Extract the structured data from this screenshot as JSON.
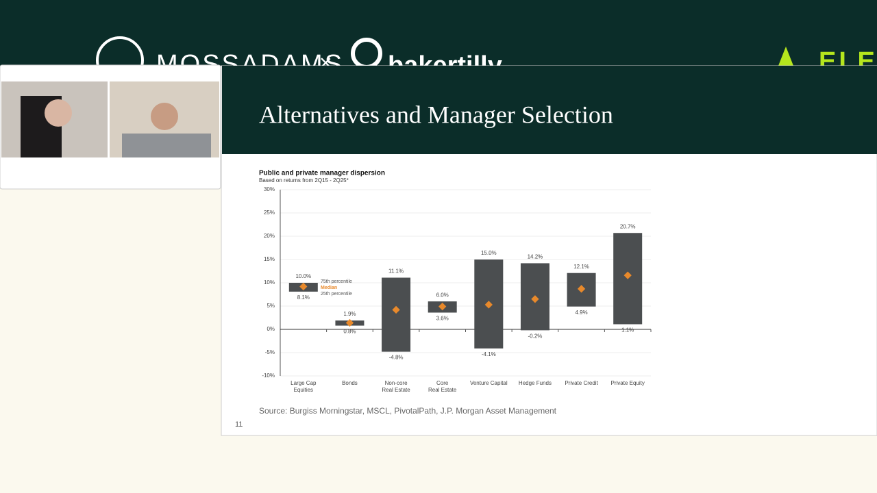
{
  "header": {
    "logos": [
      "MOSSADAMS",
      "×",
      "bakertilly",
      "ELEV"
    ]
  },
  "slide": {
    "title": "Alternatives and Manager Selection",
    "source": "Source: Burgiss Morningstar, MSCL, PivotalPath, J.P. Morgan Asset Management",
    "page_number": "11",
    "chart": {
      "type": "floating-bar",
      "title": "Public and private manager dispersion",
      "subtitle": "Based on returns from 2Q15 - 2Q25*",
      "categories": [
        [
          "Large Cap",
          "Equities"
        ],
        [
          "Bonds"
        ],
        [
          "Non-core",
          "Real Estate"
        ],
        [
          "Core",
          "Real Estate"
        ],
        [
          "Venture Capital"
        ],
        [
          "Hedge Funds"
        ],
        [
          "Private Credit"
        ],
        [
          "Private Equity"
        ]
      ],
      "series": [
        {
          "name": "75th percentile",
          "color": "#4b4e50",
          "values": [
            10.0,
            1.9,
            11.1,
            6.0,
            15.0,
            14.2,
            12.1,
            20.7
          ],
          "value_labels": [
            "10.0%",
            "1.9%",
            "11.1%",
            "6.0%",
            "15.0%",
            "14.2%",
            "12.1%",
            "20.7%"
          ]
        },
        {
          "name": "Median",
          "color": "#e8892b",
          "values": [
            9.2,
            1.4,
            4.2,
            4.9,
            5.3,
            6.5,
            8.7,
            11.6
          ]
        },
        {
          "name": "25th percentile",
          "color": "#4b4e50",
          "values": [
            8.1,
            0.8,
            -4.8,
            3.6,
            -4.1,
            -0.2,
            4.9,
            1.1
          ],
          "value_labels": [
            "8.1%",
            "0.8%",
            "-4.8%",
            "3.6%",
            "-4.1%",
            "-0.2%",
            "4.9%",
            "1.1%"
          ]
        }
      ],
      "ylim": [
        -10,
        30
      ],
      "yticks": [
        {
          "value": -10,
          "label": "-10%"
        },
        {
          "value": -5,
          "label": "-5%"
        },
        {
          "value": 0,
          "label": "0%"
        },
        {
          "value": 5,
          "label": "5%"
        },
        {
          "value": 10,
          "label": "10%"
        },
        {
          "value": 15,
          "label": "15%"
        },
        {
          "value": 20,
          "label": "20%"
        },
        {
          "value": 25,
          "label": "25%"
        },
        {
          "value": 30,
          "label": "30%"
        }
      ],
      "grid": true
    }
  }
}
